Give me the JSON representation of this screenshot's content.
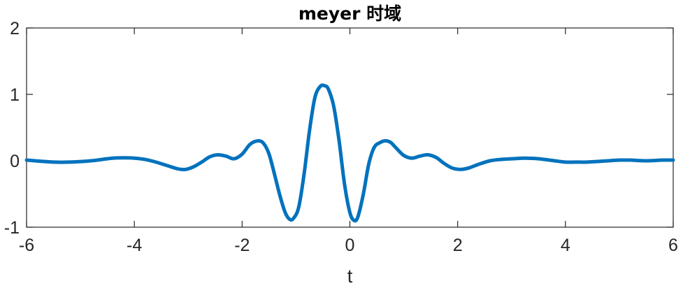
{
  "chart_data": {
    "type": "line",
    "title": "meyer 时域",
    "xlabel": "t",
    "ylabel": "",
    "xlim": [
      -6,
      6
    ],
    "ylim": [
      -1,
      2
    ],
    "xticks": [
      -6,
      -4,
      -2,
      0,
      2,
      4,
      6
    ],
    "yticks": [
      -1,
      0,
      1,
      2
    ],
    "xtick_labels": [
      "-6",
      "-4",
      "-2",
      "0",
      "2",
      "4",
      "6"
    ],
    "ytick_labels": [
      "-1",
      "0",
      "1",
      "2"
    ],
    "grid": false,
    "legend": "none",
    "series": [
      {
        "color": "#0072BD",
        "x": [
          -6.0,
          -5.5,
          -5.2,
          -4.8,
          -4.6,
          -4.4,
          -4.2,
          -4.0,
          -3.8,
          -3.6,
          -3.4,
          -3.2,
          -3.05,
          -2.9,
          -2.75,
          -2.6,
          -2.45,
          -2.3,
          -2.15,
          -2.0,
          -1.85,
          -1.7,
          -1.6,
          -1.5,
          -1.4,
          -1.3,
          -1.2,
          -1.12,
          -1.05,
          -0.95,
          -0.85,
          -0.75,
          -0.65,
          -0.55,
          -0.47,
          -0.4,
          -0.3,
          -0.2,
          -0.1,
          0.0,
          0.08,
          0.15,
          0.25,
          0.35,
          0.45,
          0.55,
          0.65,
          0.75,
          0.85,
          1.0,
          1.15,
          1.3,
          1.45,
          1.6,
          1.75,
          1.9,
          2.05,
          2.2,
          2.4,
          2.6,
          2.8,
          3.0,
          3.25,
          3.5,
          3.8,
          4.0,
          4.2,
          4.4,
          4.6,
          4.8,
          5.0,
          5.2,
          5.5,
          5.8,
          6.0
        ],
        "y": [
          0.01,
          -0.02,
          -0.02,
          0.0,
          0.02,
          0.04,
          0.045,
          0.04,
          0.02,
          -0.02,
          -0.07,
          -0.12,
          -0.13,
          -0.09,
          -0.02,
          0.06,
          0.09,
          0.07,
          0.03,
          0.1,
          0.25,
          0.3,
          0.26,
          0.1,
          -0.2,
          -0.52,
          -0.78,
          -0.88,
          -0.87,
          -0.7,
          -0.2,
          0.45,
          0.95,
          1.12,
          1.13,
          1.08,
          0.82,
          0.3,
          -0.35,
          -0.78,
          -0.9,
          -0.84,
          -0.5,
          -0.05,
          0.2,
          0.27,
          0.3,
          0.28,
          0.2,
          0.08,
          0.04,
          0.07,
          0.09,
          0.05,
          -0.04,
          -0.11,
          -0.13,
          -0.11,
          -0.05,
          0.0,
          0.02,
          0.03,
          0.04,
          0.03,
          0.0,
          -0.02,
          -0.02,
          -0.02,
          -0.01,
          0.0,
          0.01,
          0.01,
          0.0,
          0.01,
          0.01
        ]
      }
    ]
  }
}
